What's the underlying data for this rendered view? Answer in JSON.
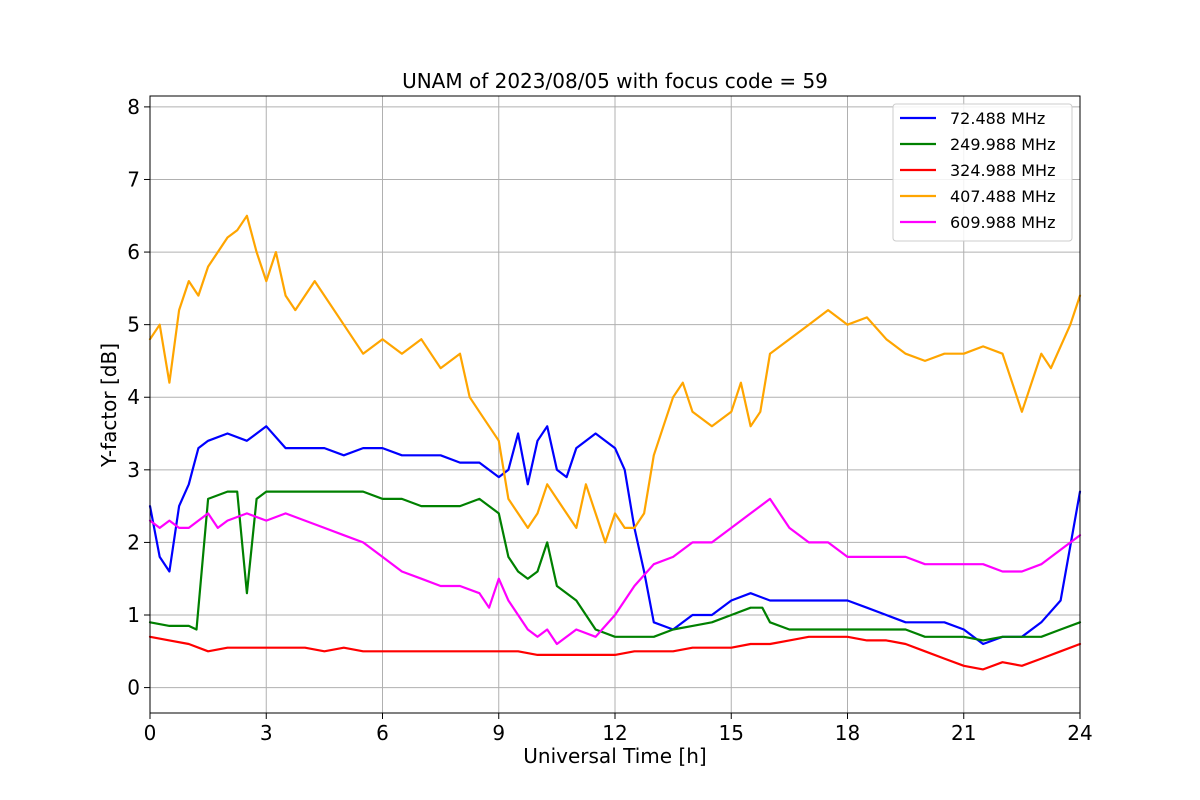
{
  "chart_data": {
    "type": "line",
    "title": "UNAM of 2023/08/05 with focus code = 59",
    "xlabel": "Universal Time [h]",
    "ylabel": "Y-factor [dB]",
    "xlim": [
      0,
      24
    ],
    "ylim": [
      -0.35,
      8.15
    ],
    "xticks": [
      0,
      3,
      6,
      9,
      12,
      15,
      18,
      21,
      24
    ],
    "yticks": [
      0,
      1,
      2,
      3,
      4,
      5,
      6,
      7,
      8
    ],
    "grid": true,
    "legend_position": "top-right",
    "series": [
      {
        "name": "  72.488 MHz",
        "color": "#0000ff",
        "x": [
          0,
          0.25,
          0.5,
          0.75,
          1.0,
          1.1,
          1.25,
          1.5,
          2.0,
          2.5,
          3.0,
          3.5,
          4.0,
          4.5,
          5.0,
          5.5,
          6.0,
          6.5,
          7.0,
          7.5,
          8.0,
          8.5,
          9.0,
          9.25,
          9.5,
          9.75,
          10.0,
          10.25,
          10.5,
          10.75,
          11.0,
          11.5,
          12.0,
          12.25,
          12.5,
          12.75,
          13.0,
          13.5,
          14.0,
          14.5,
          15.0,
          15.5,
          16.0,
          16.5,
          17.0,
          17.5,
          18.0,
          18.5,
          19.0,
          19.5,
          20.0,
          20.5,
          21.0,
          21.5,
          22.0,
          22.5,
          23.0,
          23.5,
          24.0
        ],
        "y": [
          2.5,
          1.8,
          1.6,
          2.5,
          2.8,
          3.0,
          3.3,
          3.4,
          3.5,
          3.4,
          3.6,
          3.3,
          3.3,
          3.3,
          3.2,
          3.3,
          3.3,
          3.2,
          3.2,
          3.2,
          3.1,
          3.1,
          2.9,
          3.0,
          3.5,
          2.8,
          3.4,
          3.6,
          3.0,
          2.9,
          3.3,
          3.5,
          3.3,
          3.0,
          2.2,
          1.6,
          0.9,
          0.8,
          1.0,
          1.0,
          1.2,
          1.3,
          1.2,
          1.2,
          1.2,
          1.2,
          1.2,
          1.1,
          1.0,
          0.9,
          0.9,
          0.9,
          0.8,
          0.6,
          0.7,
          0.7,
          0.9,
          1.2,
          2.7
        ]
      },
      {
        "name": "249.988 MHz",
        "color": "#008000",
        "x": [
          0,
          0.5,
          1.0,
          1.2,
          1.5,
          2.0,
          2.25,
          2.5,
          2.75,
          3.0,
          3.5,
          4.0,
          4.5,
          5.0,
          5.5,
          6.0,
          6.5,
          7.0,
          7.5,
          8.0,
          8.5,
          8.75,
          9.0,
          9.25,
          9.5,
          9.75,
          10.0,
          10.25,
          10.5,
          10.75,
          11.0,
          11.5,
          12.0,
          12.5,
          13.0,
          13.5,
          14.0,
          14.5,
          15.0,
          15.5,
          15.8,
          16.0,
          16.5,
          17.0,
          17.5,
          18.0,
          18.5,
          19.0,
          19.5,
          20.0,
          20.5,
          21.0,
          21.5,
          22.0,
          22.5,
          23.0,
          23.5,
          24.0
        ],
        "y": [
          0.9,
          0.85,
          0.85,
          0.8,
          2.6,
          2.7,
          2.7,
          1.3,
          2.6,
          2.7,
          2.7,
          2.7,
          2.7,
          2.7,
          2.7,
          2.6,
          2.6,
          2.5,
          2.5,
          2.5,
          2.6,
          2.5,
          2.4,
          1.8,
          1.6,
          1.5,
          1.6,
          2.0,
          1.4,
          1.3,
          1.2,
          0.8,
          0.7,
          0.7,
          0.7,
          0.8,
          0.85,
          0.9,
          1.0,
          1.1,
          1.1,
          0.9,
          0.8,
          0.8,
          0.8,
          0.8,
          0.8,
          0.8,
          0.8,
          0.7,
          0.7,
          0.7,
          0.65,
          0.7,
          0.7,
          0.7,
          0.8,
          0.9
        ]
      },
      {
        "name": "324.988 MHz",
        "color": "#ff0000",
        "x": [
          0,
          0.5,
          1.0,
          1.5,
          2.0,
          2.5,
          3.0,
          3.5,
          4.0,
          4.5,
          5.0,
          5.5,
          6.0,
          6.5,
          7.0,
          7.5,
          8.0,
          8.5,
          9.0,
          9.5,
          10.0,
          10.5,
          11.0,
          11.5,
          12.0,
          12.5,
          13.0,
          13.5,
          14.0,
          14.5,
          15.0,
          15.5,
          16.0,
          16.5,
          17.0,
          17.5,
          18.0,
          18.5,
          19.0,
          19.5,
          20.0,
          20.5,
          21.0,
          21.5,
          22.0,
          22.5,
          23.0,
          23.5,
          24.0
        ],
        "y": [
          0.7,
          0.65,
          0.6,
          0.5,
          0.55,
          0.55,
          0.55,
          0.55,
          0.55,
          0.5,
          0.55,
          0.5,
          0.5,
          0.5,
          0.5,
          0.5,
          0.5,
          0.5,
          0.5,
          0.5,
          0.45,
          0.45,
          0.45,
          0.45,
          0.45,
          0.5,
          0.5,
          0.5,
          0.55,
          0.55,
          0.55,
          0.6,
          0.6,
          0.65,
          0.7,
          0.7,
          0.7,
          0.65,
          0.65,
          0.6,
          0.5,
          0.4,
          0.3,
          0.25,
          0.35,
          0.3,
          0.4,
          0.5,
          0.6
        ]
      },
      {
        "name": "407.488 MHz",
        "color": "#ffa500",
        "x": [
          0,
          0.25,
          0.5,
          0.75,
          1.0,
          1.25,
          1.5,
          1.75,
          2.0,
          2.25,
          2.5,
          2.75,
          3.0,
          3.25,
          3.5,
          3.75,
          4.0,
          4.25,
          4.5,
          5.0,
          5.5,
          6.0,
          6.5,
          7.0,
          7.5,
          8.0,
          8.25,
          8.5,
          8.75,
          9.0,
          9.25,
          9.5,
          9.75,
          10.0,
          10.25,
          10.5,
          10.75,
          11.0,
          11.25,
          11.5,
          11.75,
          12.0,
          12.25,
          12.5,
          12.75,
          13.0,
          13.25,
          13.5,
          13.75,
          14.0,
          14.5,
          15.0,
          15.25,
          15.5,
          15.75,
          16.0,
          16.5,
          17.0,
          17.5,
          18.0,
          18.5,
          19.0,
          19.5,
          20.0,
          20.5,
          21.0,
          21.5,
          22.0,
          22.25,
          22.5,
          22.75,
          23.0,
          23.25,
          23.5,
          23.75,
          24.0
        ],
        "y": [
          4.8,
          5.0,
          4.2,
          5.2,
          5.6,
          5.4,
          5.8,
          6.0,
          6.2,
          6.3,
          6.5,
          6.0,
          5.6,
          6.0,
          5.4,
          5.2,
          5.4,
          5.6,
          5.4,
          5.0,
          4.6,
          4.8,
          4.6,
          4.8,
          4.4,
          4.6,
          4.0,
          3.8,
          3.6,
          3.4,
          2.6,
          2.4,
          2.2,
          2.4,
          2.8,
          2.6,
          2.4,
          2.2,
          2.8,
          2.4,
          2.0,
          2.4,
          2.2,
          2.2,
          2.4,
          3.2,
          3.6,
          4.0,
          4.2,
          3.8,
          3.6,
          3.8,
          4.2,
          3.6,
          3.8,
          4.6,
          4.8,
          5.0,
          5.2,
          5.0,
          5.1,
          4.8,
          4.6,
          4.5,
          4.6,
          4.6,
          4.7,
          4.6,
          4.2,
          3.8,
          4.2,
          4.6,
          4.4,
          4.7,
          5.0,
          5.4
        ]
      },
      {
        "name": "609.988 MHz",
        "color": "#ff00ff",
        "x": [
          0,
          0.25,
          0.5,
          0.75,
          1.0,
          1.25,
          1.5,
          1.75,
          2.0,
          2.5,
          3.0,
          3.5,
          4.0,
          4.5,
          5.0,
          5.5,
          6.0,
          6.5,
          7.0,
          7.5,
          8.0,
          8.5,
          8.75,
          9.0,
          9.25,
          9.5,
          9.75,
          10.0,
          10.25,
          10.5,
          10.75,
          11.0,
          11.5,
          12.0,
          12.5,
          13.0,
          13.5,
          14.0,
          14.5,
          15.0,
          15.5,
          16.0,
          16.5,
          17.0,
          17.5,
          18.0,
          18.5,
          19.0,
          19.5,
          20.0,
          20.5,
          21.0,
          21.5,
          22.0,
          22.5,
          23.0,
          23.5,
          24.0
        ],
        "y": [
          2.3,
          2.2,
          2.3,
          2.2,
          2.2,
          2.3,
          2.4,
          2.2,
          2.3,
          2.4,
          2.3,
          2.4,
          2.3,
          2.2,
          2.1,
          2.0,
          1.8,
          1.6,
          1.5,
          1.4,
          1.4,
          1.3,
          1.1,
          1.5,
          1.2,
          1.0,
          0.8,
          0.7,
          0.8,
          0.6,
          0.7,
          0.8,
          0.7,
          1.0,
          1.4,
          1.7,
          1.8,
          2.0,
          2.0,
          2.2,
          2.4,
          2.6,
          2.2,
          2.0,
          2.0,
          1.8,
          1.8,
          1.8,
          1.8,
          1.7,
          1.7,
          1.7,
          1.7,
          1.6,
          1.6,
          1.7,
          1.9,
          2.1
        ]
      }
    ]
  }
}
